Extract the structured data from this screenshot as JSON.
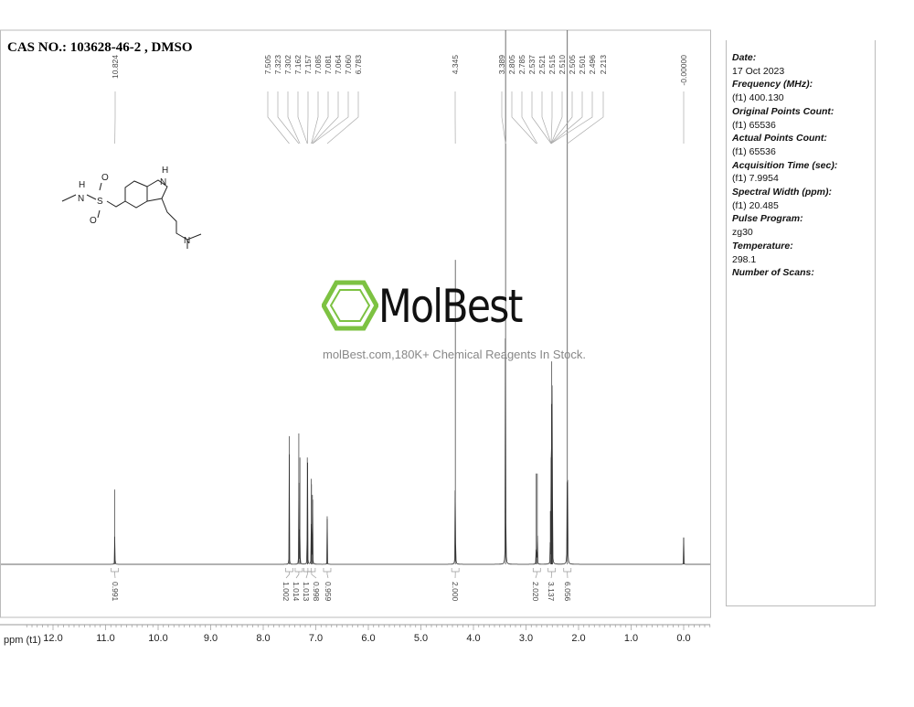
{
  "title": "CAS NO.: 103628-46-2 , DMSO",
  "watermark": {
    "brand": "MolBest",
    "tagline": "molBest.com,180K+ Chemical Reagents In Stock.",
    "brand_color": "#7dc242"
  },
  "parameters": [
    {
      "label": "Date:",
      "value": "17 Oct 2023"
    },
    {
      "label": "Frequency (MHz):",
      "value": "(f1) 400.130"
    },
    {
      "label": "Original Points Count:",
      "value": "(f1) 65536"
    },
    {
      "label": "Actual Points Count:",
      "value": "(f1) 65536"
    },
    {
      "label": "Acquisition Time (sec):",
      "value": "(f1) 7.9954"
    },
    {
      "label": "Spectral Width (ppm):",
      "value": "(f1) 20.485"
    },
    {
      "label": "Pulse Program:",
      "value": "zg30"
    },
    {
      "label": "Temperature:",
      "value": "298.1"
    },
    {
      "label": "Number of Scans:",
      "value": ""
    }
  ],
  "chart_data": {
    "type": "line",
    "xlabel": "ppm (t1)",
    "xlim": [
      12.0,
      0.0
    ],
    "x_ticks": [
      "12.0",
      "11.0",
      "10.0",
      "9.0",
      "8.0",
      "7.0",
      "6.0",
      "5.0",
      "4.0",
      "3.0",
      "2.0",
      "1.0",
      "0.0"
    ],
    "grid": false,
    "peak_groups": [
      [
        "10.824"
      ],
      [
        "7.505",
        "7.323",
        "7.302",
        "7.162",
        "7.157",
        "7.085",
        "7.081",
        "7.064",
        "7.060",
        "6.783"
      ],
      [
        "4.345"
      ],
      [
        "3.389",
        "2.805",
        "2.785",
        "2.537",
        "2.521",
        "2.515",
        "2.510",
        "2.505",
        "2.501",
        "2.496",
        "2.213"
      ],
      [
        "-0.00000"
      ]
    ],
    "peaks": [
      {
        "ppm": 10.824,
        "intensity": 0.14
      },
      {
        "ppm": 7.505,
        "intensity": 0.24
      },
      {
        "ppm": 7.323,
        "intensity": 0.245
      },
      {
        "ppm": 7.302,
        "intensity": 0.2
      },
      {
        "ppm": 7.162,
        "intensity": 0.2
      },
      {
        "ppm": 7.157,
        "intensity": 0.19
      },
      {
        "ppm": 7.085,
        "intensity": 0.16
      },
      {
        "ppm": 7.081,
        "intensity": 0.15
      },
      {
        "ppm": 7.064,
        "intensity": 0.13
      },
      {
        "ppm": 7.06,
        "intensity": 0.12
      },
      {
        "ppm": 6.783,
        "intensity": 0.09
      },
      {
        "ppm": 4.345,
        "intensity": 0.57
      },
      {
        "ppm": 3.389,
        "intensity": 1.3
      },
      {
        "ppm": 2.805,
        "intensity": 0.17
      },
      {
        "ppm": 2.785,
        "intensity": 0.17
      },
      {
        "ppm": 2.537,
        "intensity": 0.1
      },
      {
        "ppm": 2.521,
        "intensity": 0.2
      },
      {
        "ppm": 2.515,
        "intensity": 0.3
      },
      {
        "ppm": 2.51,
        "intensity": 0.38
      },
      {
        "ppm": 2.505,
        "intensity": 0.3
      },
      {
        "ppm": 2.501,
        "intensity": 0.2
      },
      {
        "ppm": 2.496,
        "intensity": 0.1
      },
      {
        "ppm": 2.213,
        "intensity": 1.3
      },
      {
        "ppm": 0.0,
        "intensity": 0.05
      }
    ],
    "integrals": [
      {
        "ppm": 10.824,
        "value": "0.991"
      },
      {
        "ppm": 7.505,
        "value": "1.002"
      },
      {
        "ppm": 7.323,
        "value": "1.014"
      },
      {
        "ppm": 7.16,
        "value": "1.013"
      },
      {
        "ppm": 7.08,
        "value": "0.998"
      },
      {
        "ppm": 6.783,
        "value": "0.959"
      },
      {
        "ppm": 4.345,
        "value": "2.000"
      },
      {
        "ppm": 2.795,
        "value": "2.020"
      },
      {
        "ppm": 2.51,
        "value": "3.137"
      },
      {
        "ppm": 2.213,
        "value": "6.056"
      }
    ]
  }
}
